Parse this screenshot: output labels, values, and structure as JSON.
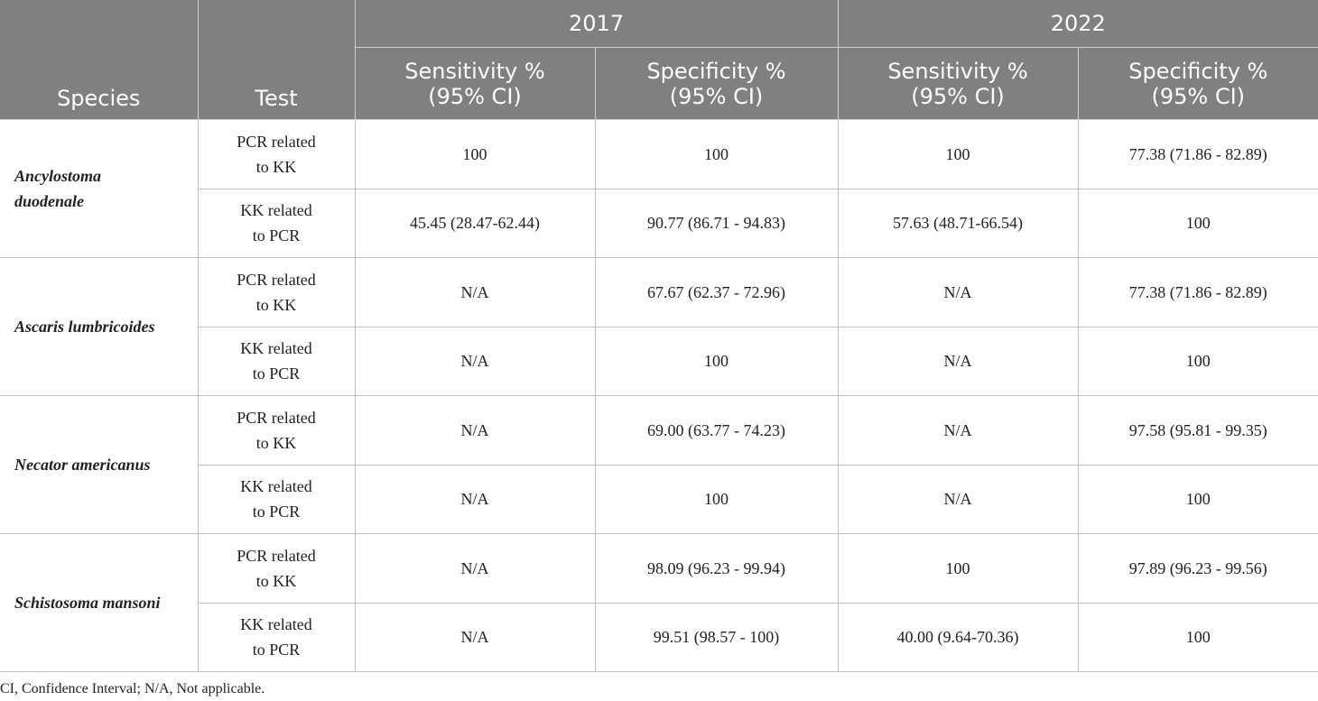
{
  "header": {
    "species": "Species",
    "test": "Test",
    "years": [
      "2017",
      "2022"
    ],
    "sensitivity": "Sensitivity %\n(95% CI)",
    "specificity": "Specificity %\n(95% CI)"
  },
  "rows": [
    {
      "species": "Ancylostoma\nduodenale",
      "tests": [
        {
          "test": "PCR related\nto KK",
          "sens2017": "100",
          "spec2017": "100",
          "sens2022": "100",
          "spec2022": "77.38 (71.86 - 82.89)"
        },
        {
          "test": "KK related\nto PCR",
          "sens2017": "45.45 (28.47-62.44)",
          "spec2017": "90.77 (86.71 - 94.83)",
          "sens2022": "57.63 (48.71-66.54)",
          "spec2022": "100"
        }
      ]
    },
    {
      "species": "Ascaris lumbricoides",
      "tests": [
        {
          "test": "PCR related\nto KK",
          "sens2017": "N/A",
          "spec2017": "67.67 (62.37 - 72.96)",
          "sens2022": "N/A",
          "spec2022": "77.38 (71.86 - 82.89)"
        },
        {
          "test": "KK related\nto PCR",
          "sens2017": "N/A",
          "spec2017": "100",
          "sens2022": "N/A",
          "spec2022": "100"
        }
      ]
    },
    {
      "species": "Necator americanus",
      "tests": [
        {
          "test": "PCR related\nto KK",
          "sens2017": "N/A",
          "spec2017": "69.00 (63.77 - 74.23)",
          "sens2022": "N/A",
          "spec2022": "97.58 (95.81 - 99.35)"
        },
        {
          "test": "KK related\nto PCR",
          "sens2017": "N/A",
          "spec2017": "100",
          "sens2022": "N/A",
          "spec2022": "100"
        }
      ]
    },
    {
      "species": "Schistosoma mansoni",
      "tests": [
        {
          "test": "PCR related\nto KK",
          "sens2017": "N/A",
          "spec2017": "98.09 (96.23 - 99.94)",
          "sens2022": "100",
          "spec2022": "97.89 (96.23 - 99.56)"
        },
        {
          "test": "KK related\nto PCR",
          "sens2017": "N/A",
          "spec2017": "99.51 (98.57 - 100)",
          "sens2022": "40.00 (9.64-70.36)",
          "spec2022": "100"
        }
      ]
    }
  ],
  "footnote": "CI, Confidence Interval; N/A, Not applicable."
}
